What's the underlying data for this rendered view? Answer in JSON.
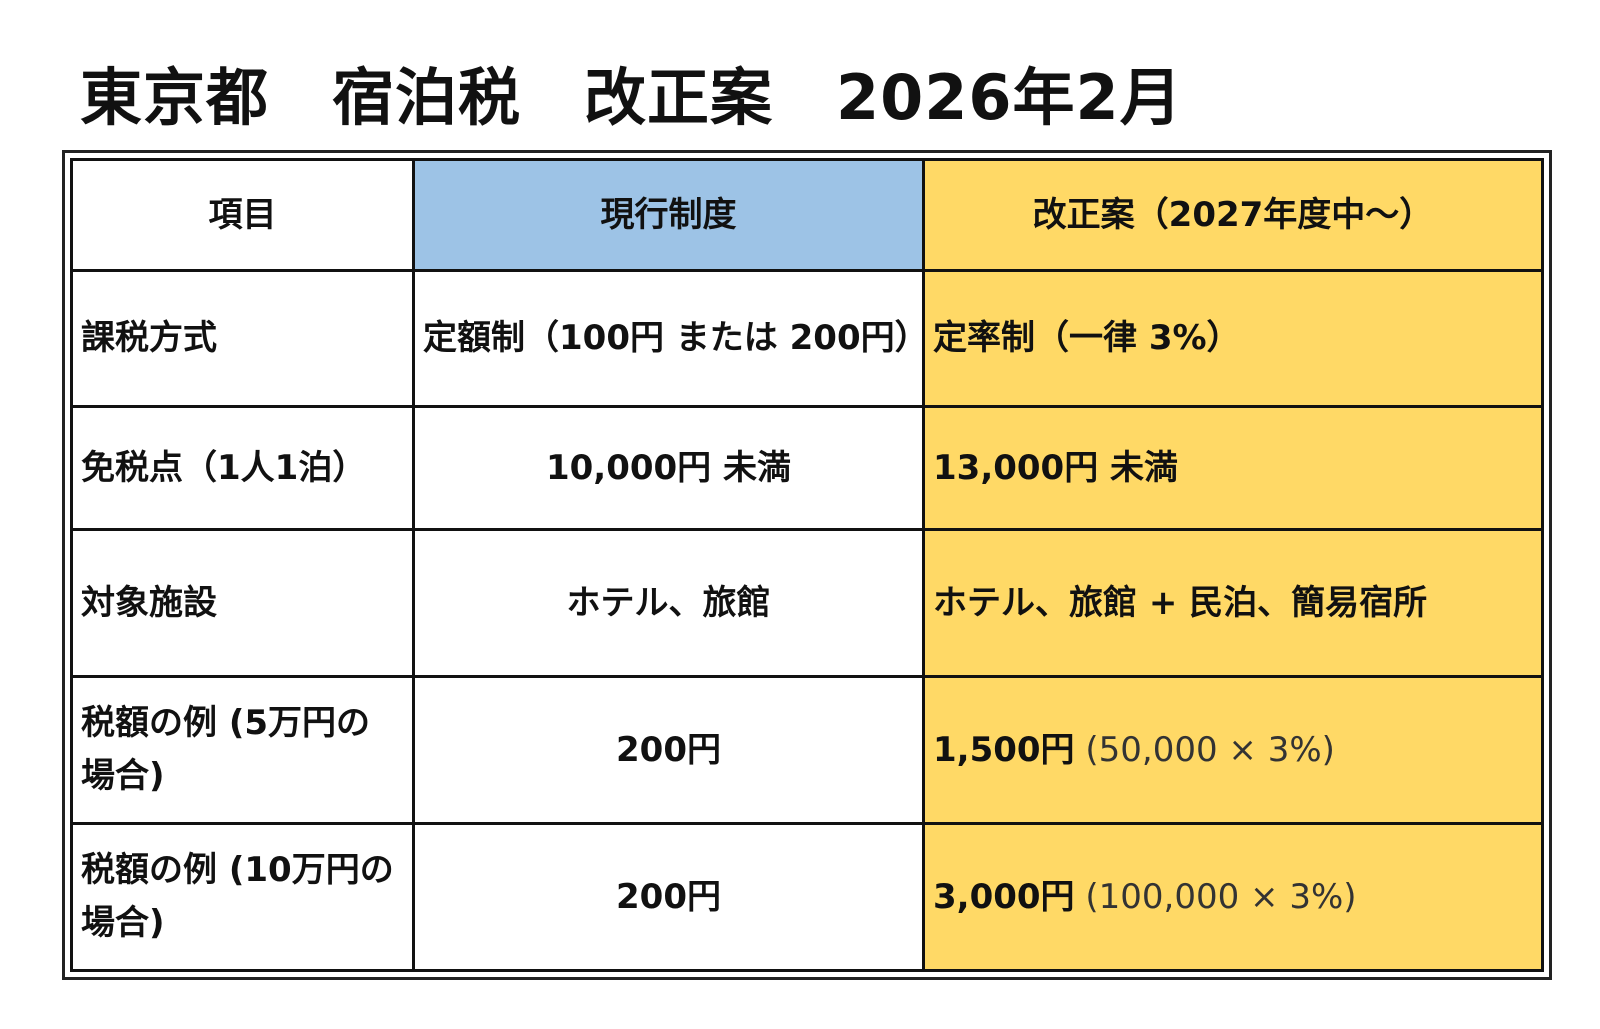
{
  "title": "東京都　宿泊税　改正案　2026年2月",
  "table": {
    "headers": {
      "item": "項目",
      "current": "現行制度",
      "proposal": "改正案（2027年度中～）"
    },
    "rows": [
      {
        "item": "課税方式",
        "current": "定額制（100円 または 200円）",
        "proposal": "定率制（一律 3%）",
        "proposal_note": ""
      },
      {
        "item": "免税点（1人1泊）",
        "current": "10,000円 未満",
        "proposal": "13,000円 未満",
        "proposal_note": ""
      },
      {
        "item": "対象施設",
        "current": "ホテル、旅館",
        "proposal": "ホテル、旅館 + 民泊、簡易宿所",
        "proposal_note": ""
      },
      {
        "item": "税額の例 (5万円の場合)",
        "current": "200円",
        "proposal": "1,500円",
        "proposal_note": " (50,000 × 3%)"
      },
      {
        "item": "税額の例 (10万円の場合)",
        "current": "200円",
        "proposal": "3,000円",
        "proposal_note": " (100,000 × 3%)"
      }
    ]
  },
  "colors": {
    "current_header_bg": "#9dc3e6",
    "proposal_bg": "#ffd966",
    "border": "#111111"
  }
}
